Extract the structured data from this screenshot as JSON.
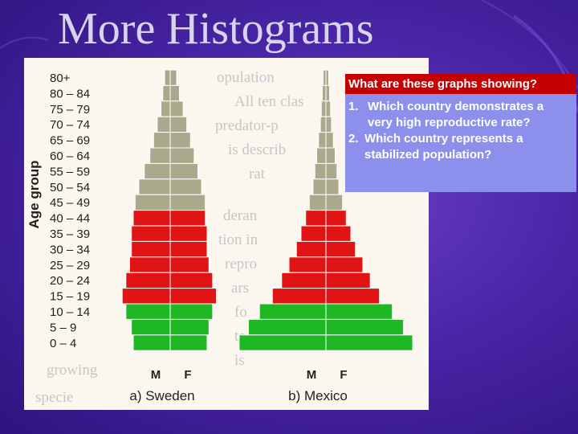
{
  "slide": {
    "title": "More Histograms"
  },
  "callout": {
    "heading": "What are these graphs showing?",
    "questions": [
      {
        "number": "1.",
        "text": "Which country demonstrates a very high reproductive rate?"
      },
      {
        "number": "2.",
        "text": "Which country represents a stabilized population?"
      }
    ]
  },
  "figure": {
    "y_axis_label": "Age group",
    "age_groups": [
      "80+",
      "80 – 84",
      "75 – 79",
      "70 – 74",
      "65 – 69",
      "60 – 64",
      "55 – 59",
      "50 – 54",
      "45 – 49",
      "40 – 44",
      "35 – 39",
      "30 – 34",
      "25 – 29",
      "20 – 24",
      "15 – 19",
      "10 – 14",
      "5 – 9",
      "0 – 4"
    ],
    "background_text": [
      "opulation",
      "All ten clas",
      "predator-p",
      "is describ",
      "rat",
      "deran",
      "tion in",
      "repro",
      "ars",
      "fo",
      "to",
      "is",
      "growing",
      "specie"
    ],
    "colors": {
      "post_reproductive": "#aaa98c",
      "reproductive": "#e01414",
      "pre_reproductive": "#1fb824",
      "background": "#fbf7ee"
    },
    "pyramids": [
      {
        "label": "a) Sweden",
        "sex_labels": [
          "M",
          "F"
        ],
        "male_widths": [
          6,
          8,
          10,
          14,
          18,
          22,
          28,
          34,
          38,
          40,
          42,
          42,
          44,
          48,
          52,
          48,
          42,
          40
        ],
        "female_widths": [
          7,
          10,
          14,
          18,
          22,
          26,
          30,
          34,
          38,
          38,
          40,
          40,
          42,
          46,
          50,
          46,
          42,
          40
        ]
      },
      {
        "label": "b) Mexico",
        "sex_labels": [
          "M",
          "F"
        ],
        "male_widths": [
          3,
          4,
          5,
          6,
          8,
          10,
          12,
          14,
          18,
          22,
          27,
          32,
          40,
          48,
          58,
          72,
          84,
          94
        ],
        "female_widths": [
          3,
          4,
          5,
          6,
          8,
          10,
          12,
          14,
          18,
          22,
          27,
          32,
          40,
          48,
          58,
          72,
          84,
          94
        ]
      }
    ]
  }
}
